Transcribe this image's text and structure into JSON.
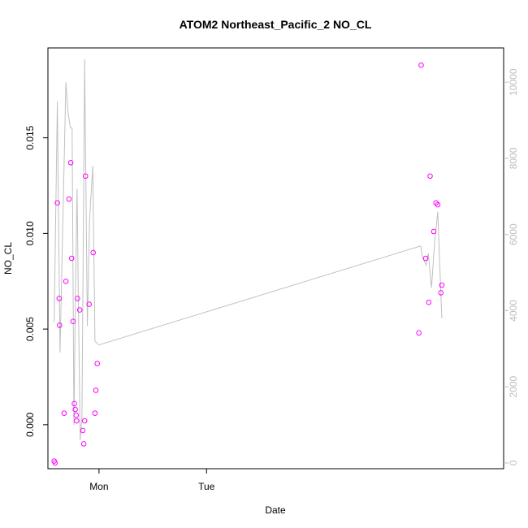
{
  "chart_data": {
    "type": "scatter",
    "title": "ATOM2 Northeast_Pacific_2 NO_CL",
    "xlabel": "Date",
    "ylabel": "NO_CL",
    "x_ticks": [
      "Mon",
      "Tue"
    ],
    "y_ticks": [
      "0.000",
      "0.005",
      "0.010",
      "0.015"
    ],
    "y_ticks_values": [
      0.0,
      0.005,
      0.01,
      0.015
    ],
    "y2_ticks": [
      "0",
      "2000",
      "4000",
      "6000",
      "8000",
      "10000"
    ],
    "y2_ticks_values": [
      0,
      2000,
      4000,
      6000,
      8000,
      10000
    ],
    "xlim_hours": [
      -11.4,
      90.3
    ],
    "ylim": [
      -0.0023,
      0.0197
    ],
    "y2lim": [
      -150,
      10900
    ],
    "x_axis_note": "x in hours relative to Mon 00:00",
    "grid": false,
    "colors": {
      "points": "#ff00ff",
      "line": "#c0c0c0",
      "right_axis": "#bdbdbd"
    },
    "series": [
      {
        "kind": "points",
        "x": [
          -10.0,
          -9.8,
          -9.3,
          -8.9,
          -8.8,
          -7.8,
          -7.4,
          -6.7,
          -6.3,
          -6.1,
          -5.8,
          -5.5,
          -5.3,
          -5.1,
          -5.0,
          -4.8,
          -4.3,
          -3.6,
          -3.4,
          -3.2,
          -3.0,
          -2.2,
          -1.3,
          -0.9
        ],
        "y": [
          -0.0019,
          -0.002,
          0.0116,
          0.0066,
          0.0052,
          0.0006,
          0.0075,
          0.0118,
          0.0137,
          0.0087,
          0.0054,
          0.0011,
          0.0008,
          0.0005,
          0.0002,
          0.0066,
          0.006,
          -0.0003,
          -0.001,
          0.0002,
          0.013,
          0.0063,
          0.009,
          0.0006
        ]
      },
      {
        "kind": "points",
        "x": [
          -0.7,
          -0.4,
          71.4,
          71.9,
          72.9,
          73.6,
          73.9,
          74.7,
          75.2,
          75.6,
          76.3,
          76.5
        ],
        "y": [
          0.0018,
          0.0032,
          0.0048,
          0.0188,
          0.0087,
          0.0064,
          0.013,
          0.0101,
          0.0116,
          0.0115,
          0.0069,
          0.0073
        ]
      },
      {
        "kind": "line",
        "axis": "right",
        "x": [
          -10.0,
          -9.3,
          -8.7,
          -7.4,
          -6.9,
          -6.4,
          -6.0,
          -5.6,
          -5.2,
          -4.9,
          -4.6,
          -4.2,
          -3.8,
          -3.2,
          -2.6,
          -2.1,
          -1.4,
          -0.9,
          0.0,
          71.8,
          72.2,
          73.0,
          73.5,
          74.2,
          74.9,
          75.6,
          76.5
        ],
        "y": [
          3700,
          9500,
          2900,
          10000,
          9200,
          8800,
          8800,
          1000,
          4900,
          7200,
          4200,
          600,
          1200,
          10600,
          3600,
          6400,
          7800,
          3200,
          3100,
          5700,
          5400,
          5200,
          5500,
          4600,
          5800,
          6600,
          3800
        ]
      }
    ]
  }
}
